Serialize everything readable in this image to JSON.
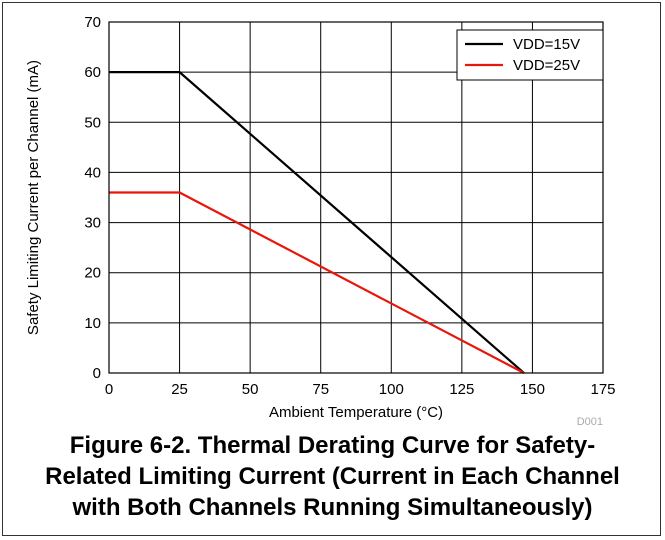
{
  "chart_data": {
    "type": "line",
    "xlabel": "Ambient Temperature (°C)",
    "ylabel": "Safety Limiting Current per Channel (mA)",
    "xlim": [
      0,
      175
    ],
    "ylim": [
      0,
      70
    ],
    "xticks": [
      0,
      25,
      50,
      75,
      100,
      125,
      150,
      175
    ],
    "yticks": [
      0,
      10,
      20,
      30,
      40,
      50,
      60,
      70
    ],
    "grid": true,
    "legend_position": "top-right",
    "series": [
      {
        "name": "VDD=15V",
        "color": "#000000",
        "x": [
          0,
          25,
          147
        ],
        "y": [
          60,
          60,
          0
        ]
      },
      {
        "name": "VDD=25V",
        "color": "#e8160c",
        "x": [
          0,
          25,
          147
        ],
        "y": [
          36,
          36,
          0
        ]
      }
    ],
    "watermark": "D001"
  },
  "caption": [
    "Figure 6-2. Thermal Derating Curve for Safety-",
    "Related Limiting Current (Current in Each Channel",
    "with Both Channels Running Simultaneously)"
  ]
}
